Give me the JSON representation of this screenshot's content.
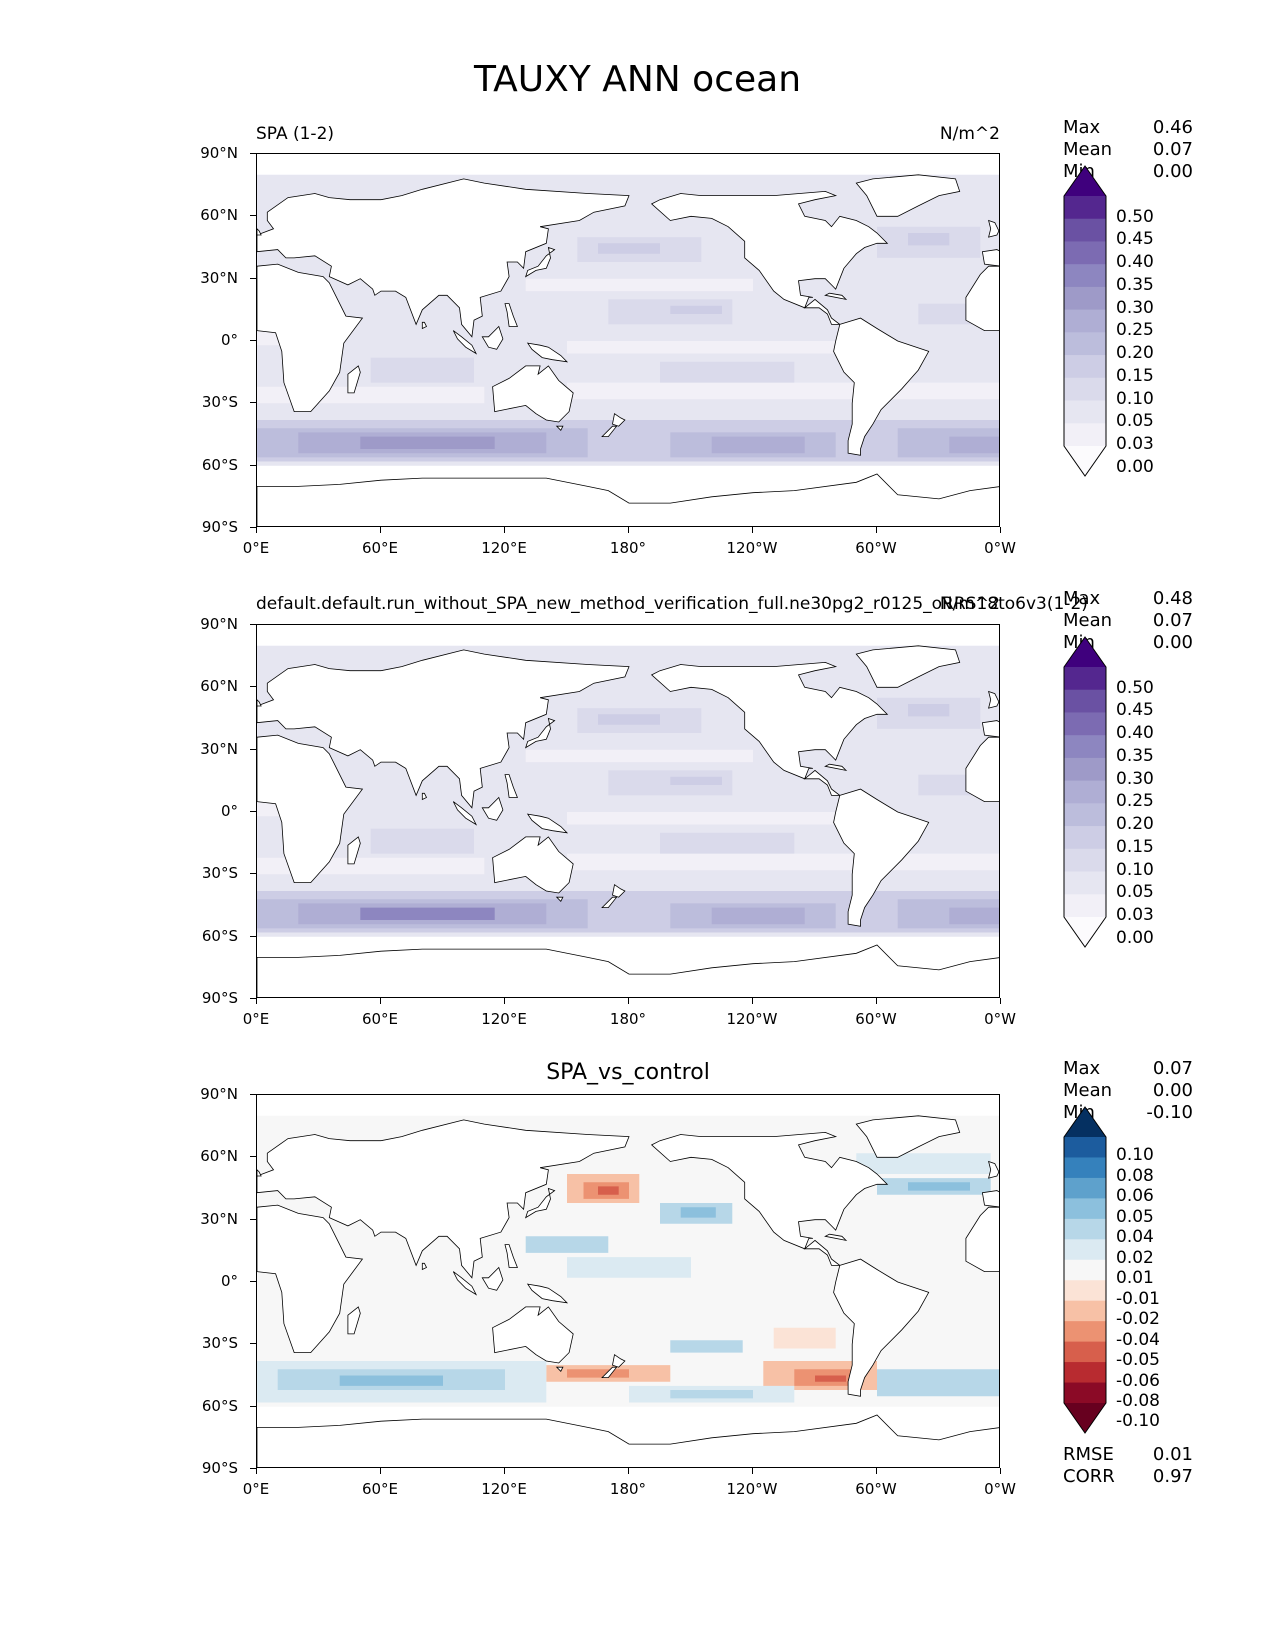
{
  "figure_title": "TAUXY ANN ocean",
  "axes": {
    "y_ticks": [
      "90°N",
      "60°N",
      "30°N",
      "0°",
      "30°S",
      "60°S",
      "90°S"
    ],
    "x_ticks": [
      "0°E",
      "60°E",
      "120°E",
      "180°",
      "120°W",
      "60°W",
      "0°W"
    ]
  },
  "panels": [
    {
      "title_left": "SPA (1-2)",
      "title_right": "N/m^2",
      "stats": [
        {
          "label": "Max",
          "value": "0.46"
        },
        {
          "label": "Mean",
          "value": "0.07"
        },
        {
          "label": "Min",
          "value": "0.00"
        }
      ],
      "colorbar_levels": [
        "0.50",
        "0.45",
        "0.40",
        "0.35",
        "0.30",
        "0.25",
        "0.20",
        "0.15",
        "0.10",
        "0.05",
        "0.03",
        "0.00"
      ],
      "colorbar_colors": [
        "#3f007d",
        "#54278f",
        "#6a51a3",
        "#7c6bb2",
        "#8d86c0",
        "#9e9ac8",
        "#afaed4",
        "#bcbddc",
        "#cdcde5",
        "#dadaeb",
        "#e6e6f1",
        "#f2f0f7",
        "#fcfbfd"
      ]
    },
    {
      "title_left": "default.default.run_without_SPA_new_method_verification_full.ne30pg2_r0125_oRRS18to6v3(1-2)",
      "title_right": "N/m^2",
      "stats": [
        {
          "label": "Max",
          "value": "0.48"
        },
        {
          "label": "Mean",
          "value": "0.07"
        },
        {
          "label": "Min",
          "value": "0.00"
        }
      ],
      "colorbar_levels": [
        "0.50",
        "0.45",
        "0.40",
        "0.35",
        "0.30",
        "0.25",
        "0.20",
        "0.15",
        "0.10",
        "0.05",
        "0.03",
        "0.00"
      ],
      "colorbar_colors": [
        "#3f007d",
        "#54278f",
        "#6a51a3",
        "#7c6bb2",
        "#8d86c0",
        "#9e9ac8",
        "#afaed4",
        "#bcbddc",
        "#cdcde5",
        "#dadaeb",
        "#e6e6f1",
        "#f2f0f7",
        "#fcfbfd"
      ]
    },
    {
      "title_center": "SPA_vs_control",
      "stats": [
        {
          "label": "Max",
          "value": "0.07"
        },
        {
          "label": "Mean",
          "value": "0.00"
        },
        {
          "label": "Min",
          "value": "-0.10"
        }
      ],
      "colorbar_levels": [
        "0.10",
        "0.08",
        "0.06",
        "0.05",
        "0.04",
        "0.02",
        "0.01",
        "-0.01",
        "-0.02",
        "-0.04",
        "-0.05",
        "-0.06",
        "-0.08",
        "-0.10"
      ],
      "colorbar_colors": [
        "#053061",
        "#1c5c9e",
        "#3581bc",
        "#5ea1cc",
        "#8cc0dd",
        "#b7d7e8",
        "#dbeaf2",
        "#f7f7f7",
        "#fbe3d6",
        "#f7c1a6",
        "#ec9272",
        "#d75f4c",
        "#b82b30",
        "#8b0a26",
        "#67001f"
      ],
      "metrics": [
        {
          "label": "RMSE",
          "value": "0.01"
        },
        {
          "label": "CORR",
          "value": "0.97"
        }
      ]
    }
  ],
  "chart_data": [
    {
      "type": "heatmap",
      "title": "SPA (1-2)",
      "units": "N/m^2",
      "xlim": [
        0,
        360
      ],
      "ylim": [
        -90,
        90
      ],
      "max": 0.46,
      "mean": 0.07,
      "min": 0.0
    },
    {
      "type": "heatmap",
      "title": "default.default.run_without_SPA_new_method_verification_full.ne30pg2_r0125_oRRS18to6v3(1-2)",
      "units": "N/m^2",
      "xlim": [
        0,
        360
      ],
      "ylim": [
        -90,
        90
      ],
      "max": 0.48,
      "mean": 0.07,
      "min": 0.0
    },
    {
      "type": "heatmap",
      "title": "SPA_vs_control",
      "xlim": [
        0,
        360
      ],
      "ylim": [
        -90,
        90
      ],
      "max": 0.07,
      "mean": 0.0,
      "min": -0.1,
      "rmse": 0.01,
      "corr": 0.97
    }
  ]
}
